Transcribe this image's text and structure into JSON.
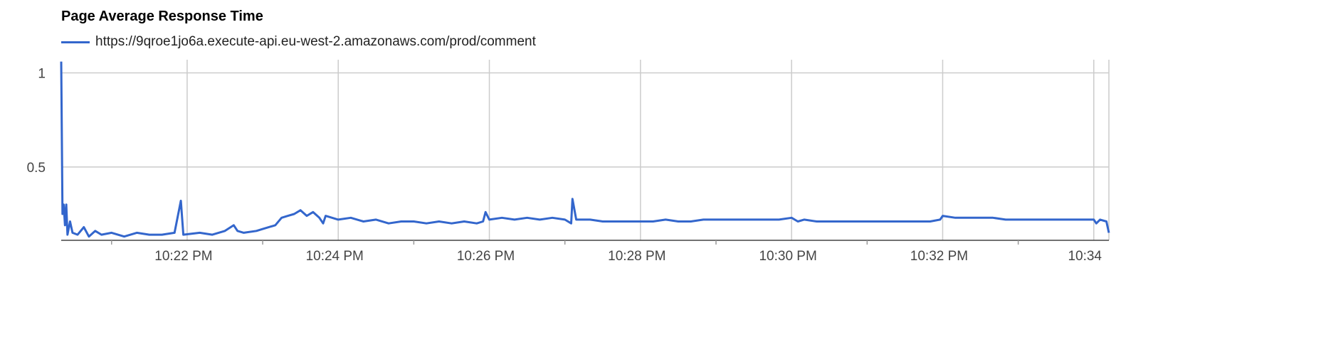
{
  "chart_data": {
    "type": "line",
    "title": "Page Average Response Time",
    "xlabel": "",
    "ylabel": "",
    "ylim": [
      0.11,
      1.07
    ],
    "xlim": [
      "10:20:20 PM",
      "10:34:12 PM"
    ],
    "grid": true,
    "legend": "top-left",
    "yticks": [
      {
        "value": 1,
        "label": "1"
      },
      {
        "value": 0.5,
        "label": "0.5"
      }
    ],
    "xticks": [
      {
        "time": "10:22 PM",
        "label": "10:22 PM"
      },
      {
        "time": "10:24 PM",
        "label": "10:24 PM"
      },
      {
        "time": "10:26 PM",
        "label": "10:26 PM"
      },
      {
        "time": "10:28 PM",
        "label": "10:28 PM"
      },
      {
        "time": "10:30 PM",
        "label": "10:30 PM"
      },
      {
        "time": "10:32 PM",
        "label": "10:32 PM"
      },
      {
        "time": "10:34 PM",
        "label": "10:34"
      }
    ],
    "minor_xticks": [
      "10:21 PM",
      "10:23 PM",
      "10:25 PM",
      "10:27 PM",
      "10:29 PM",
      "10:31 PM",
      "10:33 PM"
    ],
    "series": [
      {
        "name": "https://9qroe1jo6a.execute-api.eu-west-2.amazonaws.com/prod/comment",
        "color": "#3366cc",
        "points": [
          [
            "10:20:20 PM",
            1.06
          ],
          [
            "10:20:21 PM",
            0.25
          ],
          [
            "10:20:22 PM",
            0.3
          ],
          [
            "10:20:23 PM",
            0.19
          ],
          [
            "10:20:24 PM",
            0.3
          ],
          [
            "10:20:25 PM",
            0.14
          ],
          [
            "10:20:27 PM",
            0.21
          ],
          [
            "10:20:29 PM",
            0.15
          ],
          [
            "10:20:33 PM",
            0.14
          ],
          [
            "10:20:38 PM",
            0.18
          ],
          [
            "10:20:42 PM",
            0.13
          ],
          [
            "10:20:47 PM",
            0.16
          ],
          [
            "10:20:52 PM",
            0.14
          ],
          [
            "10:21:00 PM",
            0.15
          ],
          [
            "10:21:10 PM",
            0.13
          ],
          [
            "10:21:20 PM",
            0.15
          ],
          [
            "10:21:30 PM",
            0.14
          ],
          [
            "10:21:40 PM",
            0.14
          ],
          [
            "10:21:50 PM",
            0.15
          ],
          [
            "10:21:55 PM",
            0.32
          ],
          [
            "10:21:57 PM",
            0.14
          ],
          [
            "10:22:10 PM",
            0.15
          ],
          [
            "10:22:20 PM",
            0.14
          ],
          [
            "10:22:30 PM",
            0.16
          ],
          [
            "10:22:37 PM",
            0.19
          ],
          [
            "10:22:40 PM",
            0.16
          ],
          [
            "10:22:45 PM",
            0.15
          ],
          [
            "10:22:55 PM",
            0.16
          ],
          [
            "10:23:00 PM",
            0.17
          ],
          [
            "10:23:10 PM",
            0.19
          ],
          [
            "10:23:15 PM",
            0.23
          ],
          [
            "10:23:20 PM",
            0.24
          ],
          [
            "10:23:25 PM",
            0.25
          ],
          [
            "10:23:30 PM",
            0.27
          ],
          [
            "10:23:35 PM",
            0.24
          ],
          [
            "10:23:40 PM",
            0.26
          ],
          [
            "10:23:45 PM",
            0.23
          ],
          [
            "10:23:48 PM",
            0.2
          ],
          [
            "10:23:50 PM",
            0.24
          ],
          [
            "10:24:00 PM",
            0.22
          ],
          [
            "10:24:10 PM",
            0.23
          ],
          [
            "10:24:20 PM",
            0.21
          ],
          [
            "10:24:30 PM",
            0.22
          ],
          [
            "10:24:40 PM",
            0.2
          ],
          [
            "10:24:50 PM",
            0.21
          ],
          [
            "10:25:00 PM",
            0.21
          ],
          [
            "10:25:10 PM",
            0.2
          ],
          [
            "10:25:20 PM",
            0.21
          ],
          [
            "10:25:30 PM",
            0.2
          ],
          [
            "10:25:40 PM",
            0.21
          ],
          [
            "10:25:50 PM",
            0.2
          ],
          [
            "10:25:55 PM",
            0.21
          ],
          [
            "10:25:57 PM",
            0.26
          ],
          [
            "10:26:00 PM",
            0.22
          ],
          [
            "10:26:10 PM",
            0.23
          ],
          [
            "10:26:20 PM",
            0.22
          ],
          [
            "10:26:30 PM",
            0.23
          ],
          [
            "10:26:40 PM",
            0.22
          ],
          [
            "10:26:50 PM",
            0.23
          ],
          [
            "10:27:00 PM",
            0.22
          ],
          [
            "10:27:05 PM",
            0.2
          ],
          [
            "10:27:06 PM",
            0.33
          ],
          [
            "10:27:09 PM",
            0.22
          ],
          [
            "10:27:20 PM",
            0.22
          ],
          [
            "10:27:30 PM",
            0.21
          ],
          [
            "10:27:40 PM",
            0.21
          ],
          [
            "10:27:50 PM",
            0.21
          ],
          [
            "10:28:00 PM",
            0.21
          ],
          [
            "10:28:10 PM",
            0.21
          ],
          [
            "10:28:20 PM",
            0.22
          ],
          [
            "10:28:30 PM",
            0.21
          ],
          [
            "10:28:40 PM",
            0.21
          ],
          [
            "10:28:50 PM",
            0.22
          ],
          [
            "10:29:00 PM",
            0.22
          ],
          [
            "10:29:10 PM",
            0.22
          ],
          [
            "10:29:20 PM",
            0.22
          ],
          [
            "10:29:30 PM",
            0.22
          ],
          [
            "10:29:40 PM",
            0.22
          ],
          [
            "10:29:50 PM",
            0.22
          ],
          [
            "10:30:00 PM",
            0.23
          ],
          [
            "10:30:05 PM",
            0.21
          ],
          [
            "10:30:10 PM",
            0.22
          ],
          [
            "10:30:20 PM",
            0.21
          ],
          [
            "10:30:30 PM",
            0.21
          ],
          [
            "10:30:40 PM",
            0.21
          ],
          [
            "10:30:50 PM",
            0.21
          ],
          [
            "10:31:00 PM",
            0.21
          ],
          [
            "10:31:10 PM",
            0.21
          ],
          [
            "10:31:20 PM",
            0.21
          ],
          [
            "10:31:30 PM",
            0.21
          ],
          [
            "10:31:40 PM",
            0.21
          ],
          [
            "10:31:50 PM",
            0.21
          ],
          [
            "10:31:58 PM",
            0.22
          ],
          [
            "10:32:00 PM",
            0.24
          ],
          [
            "10:32:10 PM",
            0.23
          ],
          [
            "10:32:20 PM",
            0.23
          ],
          [
            "10:32:30 PM",
            0.23
          ],
          [
            "10:32:40 PM",
            0.23
          ],
          [
            "10:32:50 PM",
            0.22
          ],
          [
            "10:33:00 PM",
            0.22
          ],
          [
            "10:33:10 PM",
            0.22
          ],
          [
            "10:33:20 PM",
            0.22
          ],
          [
            "10:33:30 PM",
            0.22
          ],
          [
            "10:33:40 PM",
            0.22
          ],
          [
            "10:33:50 PM",
            0.22
          ],
          [
            "10:34:00 PM",
            0.22
          ],
          [
            "10:34:02 PM",
            0.2
          ],
          [
            "10:34:05 PM",
            0.22
          ],
          [
            "10:34:10 PM",
            0.21
          ],
          [
            "10:34:12 PM",
            0.15
          ]
        ]
      }
    ]
  }
}
